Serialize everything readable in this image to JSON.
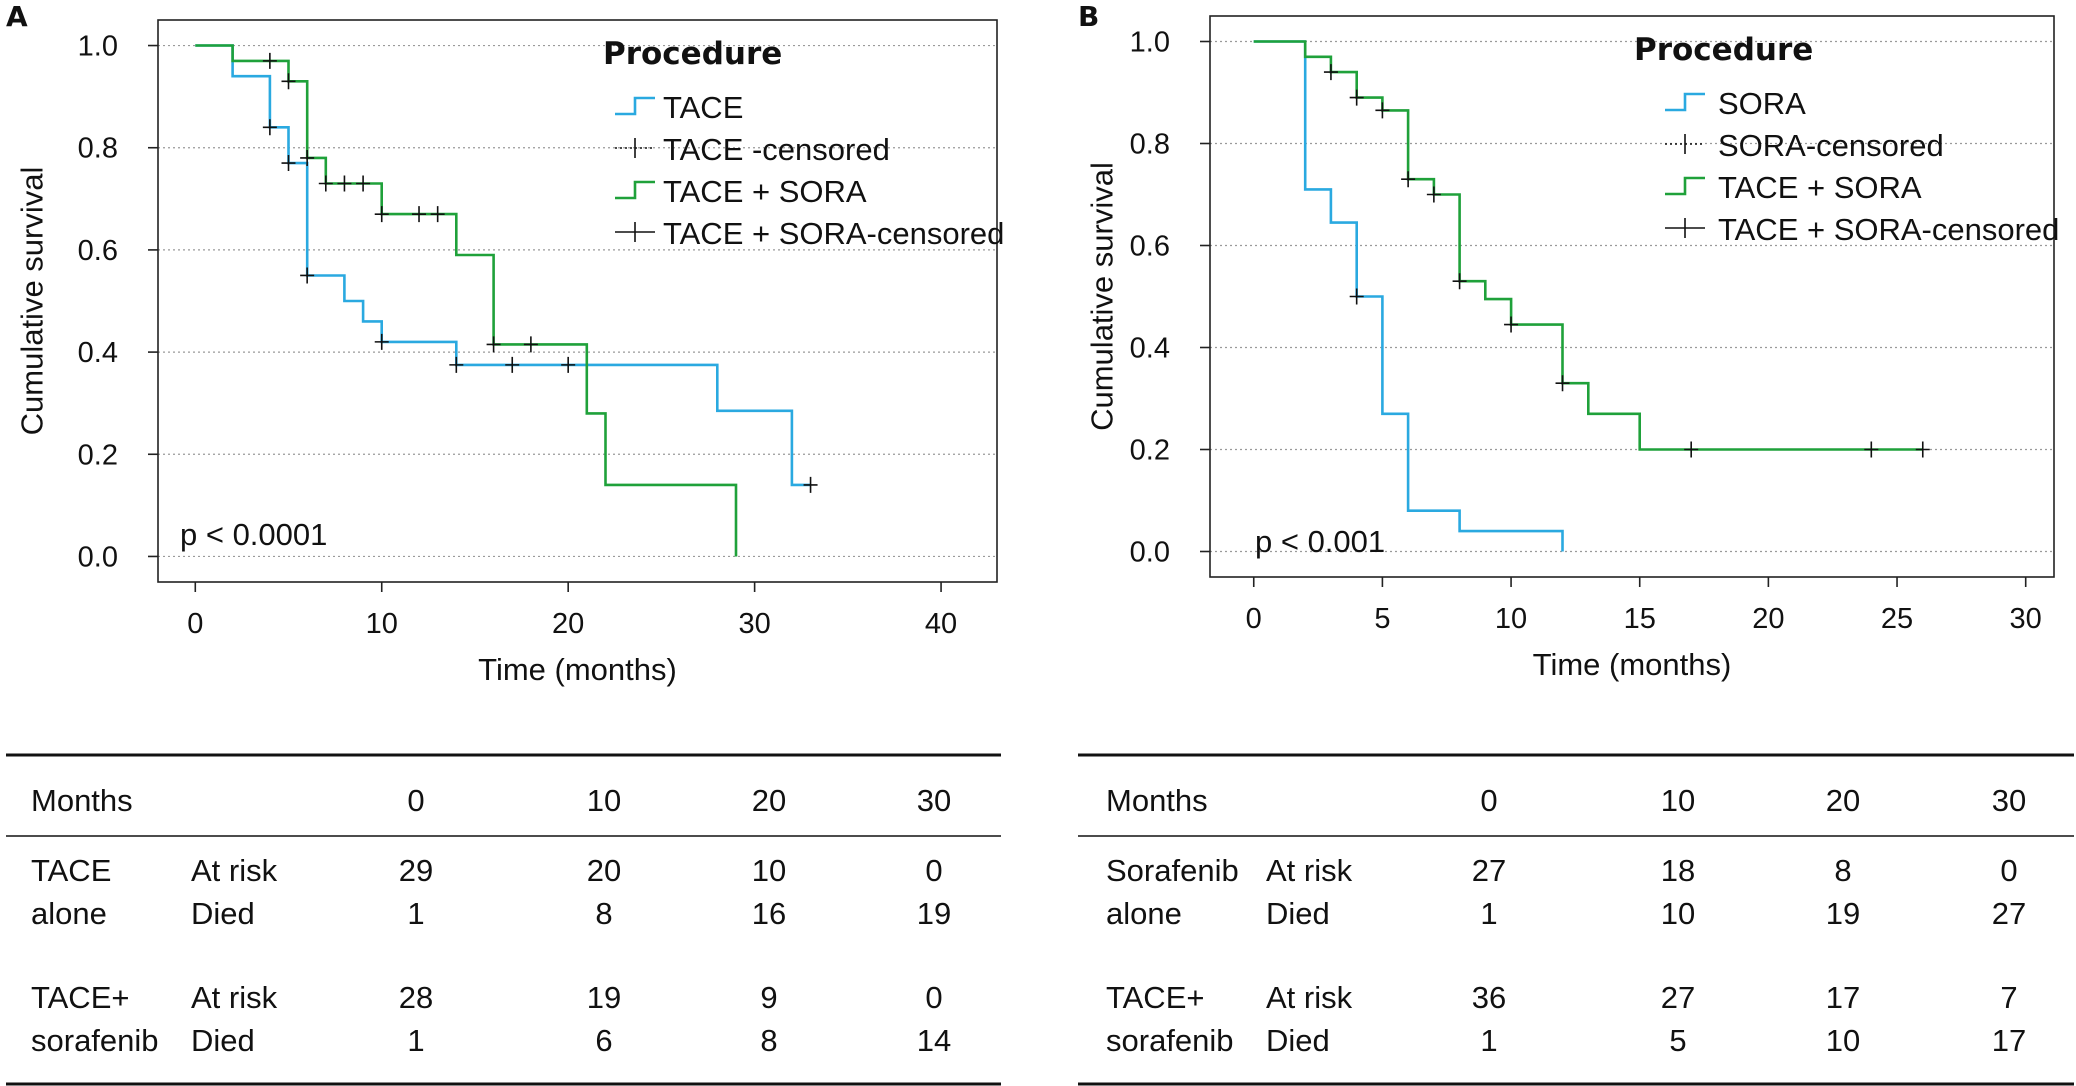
{
  "colors": {
    "blue": "#2aa9e0",
    "green": "#1fa13a",
    "grid": "#9a9a9a",
    "frame": "#222222"
  },
  "chart_data": [
    {
      "type": "line",
      "panel_label": "A",
      "ylabel": "Cumulative survival",
      "xlabel": "Time (months)",
      "xlim": [
        -2,
        43
      ],
      "ylim": [
        -0.05,
        1.05
      ],
      "x_ticks": [
        0,
        10,
        20,
        30,
        40
      ],
      "x_tick_labels": [
        "0",
        "10",
        "20",
        "30",
        "40"
      ],
      "y_ticks": [
        0.0,
        0.2,
        0.4,
        0.6,
        0.8,
        1.0
      ],
      "y_tick_labels": [
        "0.0",
        "0.2",
        "0.4",
        "0.6",
        "0.8",
        "1.0"
      ],
      "grid": "horizontal dotted",
      "annotation": "p < 0.0001",
      "legend_title": "Procedure",
      "legend_position": "top-right",
      "legend_entries": [
        "TACE",
        "TACE -censored",
        "TACE + SORA",
        "TACE + SORA-censored"
      ],
      "series": [
        {
          "name": "TACE",
          "color": "blue",
          "steps": [
            [
              0,
              1.0
            ],
            [
              2,
              1.0
            ],
            [
              2,
              0.94
            ],
            [
              4,
              0.94
            ],
            [
              4,
              0.84
            ],
            [
              5,
              0.84
            ],
            [
              5,
              0.77
            ],
            [
              6,
              0.77
            ],
            [
              6,
              0.55
            ],
            [
              8,
              0.55
            ],
            [
              8,
              0.5
            ],
            [
              9,
              0.5
            ],
            [
              9,
              0.46
            ],
            [
              10,
              0.46
            ],
            [
              10,
              0.42
            ],
            [
              14,
              0.42
            ],
            [
              14,
              0.375
            ],
            [
              28,
              0.375
            ],
            [
              28,
              0.285
            ],
            [
              32,
              0.285
            ],
            [
              32,
              0.14
            ],
            [
              33,
              0.14
            ]
          ],
          "censored": [
            [
              4,
              0.84
            ],
            [
              5,
              0.77
            ],
            [
              6,
              0.55
            ],
            [
              10,
              0.42
            ],
            [
              14,
              0.375
            ],
            [
              17,
              0.375
            ],
            [
              20,
              0.375
            ],
            [
              33,
              0.14
            ]
          ]
        },
        {
          "name": "TACE + SORA",
          "color": "green",
          "steps": [
            [
              0,
              1.0
            ],
            [
              2,
              1.0
            ],
            [
              2,
              0.97
            ],
            [
              5,
              0.97
            ],
            [
              5,
              0.93
            ],
            [
              6,
              0.93
            ],
            [
              6,
              0.78
            ],
            [
              7,
              0.78
            ],
            [
              7,
              0.73
            ],
            [
              10,
              0.73
            ],
            [
              10,
              0.67
            ],
            [
              14,
              0.67
            ],
            [
              14,
              0.59
            ],
            [
              16,
              0.59
            ],
            [
              16,
              0.415
            ],
            [
              21,
              0.415
            ],
            [
              21,
              0.28
            ],
            [
              22,
              0.28
            ],
            [
              22,
              0.14
            ],
            [
              29,
              0.14
            ],
            [
              29,
              0.0
            ]
          ],
          "censored": [
            [
              4,
              0.97
            ],
            [
              5,
              0.93
            ],
            [
              6,
              0.78
            ],
            [
              7,
              0.73
            ],
            [
              8,
              0.73
            ],
            [
              9,
              0.73
            ],
            [
              10,
              0.67
            ],
            [
              12,
              0.67
            ],
            [
              13,
              0.67
            ],
            [
              16,
              0.415
            ],
            [
              18,
              0.415
            ]
          ]
        }
      ]
    },
    {
      "type": "line",
      "panel_label": "B",
      "ylabel": "Cumulative survival",
      "xlabel": "Time (months)",
      "xlim": [
        -1.7,
        31.1
      ],
      "ylim": [
        -0.05,
        1.05
      ],
      "x_ticks": [
        0,
        5,
        10,
        15,
        20,
        25,
        30
      ],
      "x_tick_labels": [
        "0",
        "5",
        "10",
        "15",
        "20",
        "25",
        "30"
      ],
      "y_ticks": [
        0.0,
        0.2,
        0.4,
        0.6,
        0.8,
        1.0
      ],
      "y_tick_labels": [
        "0.0",
        "0.2",
        "0.4",
        "0.6",
        "0.8",
        "1.0"
      ],
      "grid": "horizontal dotted",
      "annotation": "p < 0.001",
      "legend_title": "Procedure",
      "legend_position": "top-right",
      "legend_entries": [
        "SORA",
        "SORA-censored",
        "TACE + SORA",
        "TACE + SORA-censored"
      ],
      "series": [
        {
          "name": "SORA",
          "color": "blue",
          "steps": [
            [
              0,
              1.0
            ],
            [
              2,
              1.0
            ],
            [
              2,
              0.71
            ],
            [
              3,
              0.71
            ],
            [
              3,
              0.645
            ],
            [
              4,
              0.645
            ],
            [
              4,
              0.5
            ],
            [
              5,
              0.5
            ],
            [
              5,
              0.27
            ],
            [
              6,
              0.27
            ],
            [
              6,
              0.08
            ],
            [
              8,
              0.08
            ],
            [
              8,
              0.04
            ],
            [
              12,
              0.04
            ],
            [
              12,
              0.0
            ]
          ],
          "censored": [
            [
              4,
              0.5
            ]
          ]
        },
        {
          "name": "TACE + SORA",
          "color": "green",
          "steps": [
            [
              0,
              1.0
            ],
            [
              2,
              1.0
            ],
            [
              2,
              0.97
            ],
            [
              3,
              0.97
            ],
            [
              3,
              0.94
            ],
            [
              4,
              0.94
            ],
            [
              4,
              0.89
            ],
            [
              5,
              0.89
            ],
            [
              5,
              0.865
            ],
            [
              6,
              0.865
            ],
            [
              6,
              0.73
            ],
            [
              7,
              0.73
            ],
            [
              7,
              0.7
            ],
            [
              8,
              0.7
            ],
            [
              8,
              0.53
            ],
            [
              9,
              0.53
            ],
            [
              9,
              0.495
            ],
            [
              10,
              0.495
            ],
            [
              10,
              0.445
            ],
            [
              12,
              0.445
            ],
            [
              12,
              0.33
            ],
            [
              13,
              0.33
            ],
            [
              13,
              0.27
            ],
            [
              15,
              0.27
            ],
            [
              15,
              0.2
            ],
            [
              26,
              0.2
            ]
          ],
          "censored": [
            [
              3,
              0.94
            ],
            [
              4,
              0.89
            ],
            [
              5,
              0.865
            ],
            [
              6,
              0.73
            ],
            [
              7,
              0.7
            ],
            [
              8,
              0.53
            ],
            [
              10,
              0.445
            ],
            [
              12,
              0.33
            ],
            [
              17,
              0.2
            ],
            [
              24,
              0.2
            ],
            [
              26,
              0.2
            ]
          ]
        }
      ]
    }
  ],
  "risk_tables": [
    {
      "months_label": "Months",
      "months": [
        "0",
        "10",
        "20",
        "30"
      ],
      "groups": [
        {
          "name_line1": "TACE",
          "name_line2": "alone",
          "row1_label": "At risk",
          "row1": [
            "29",
            "20",
            "10",
            "0"
          ],
          "row2_label": "Died",
          "row2": [
            "1",
            "8",
            "16",
            "19"
          ]
        },
        {
          "name_line1": "TACE+",
          "name_line2": "sorafenib",
          "row1_label": "At risk",
          "row1": [
            "28",
            "19",
            "9",
            "0"
          ],
          "row2_label": "Died",
          "row2": [
            "1",
            "6",
            "8",
            "14"
          ]
        }
      ]
    },
    {
      "months_label": "Months",
      "months": [
        "0",
        "10",
        "20",
        "30"
      ],
      "groups": [
        {
          "name_line1": "Sorafenib",
          "name_line2": "alone",
          "row1_label": "At risk",
          "row1": [
            "27",
            "18",
            "8",
            "0"
          ],
          "row2_label": "Died",
          "row2": [
            "1",
            "10",
            "19",
            "27"
          ]
        },
        {
          "name_line1": "TACE+",
          "name_line2": "sorafenib",
          "row1_label": "At risk",
          "row1": [
            "36",
            "27",
            "17",
            "7"
          ],
          "row2_label": "Died",
          "row2": [
            "1",
            "5",
            "10",
            "17"
          ]
        }
      ]
    }
  ]
}
